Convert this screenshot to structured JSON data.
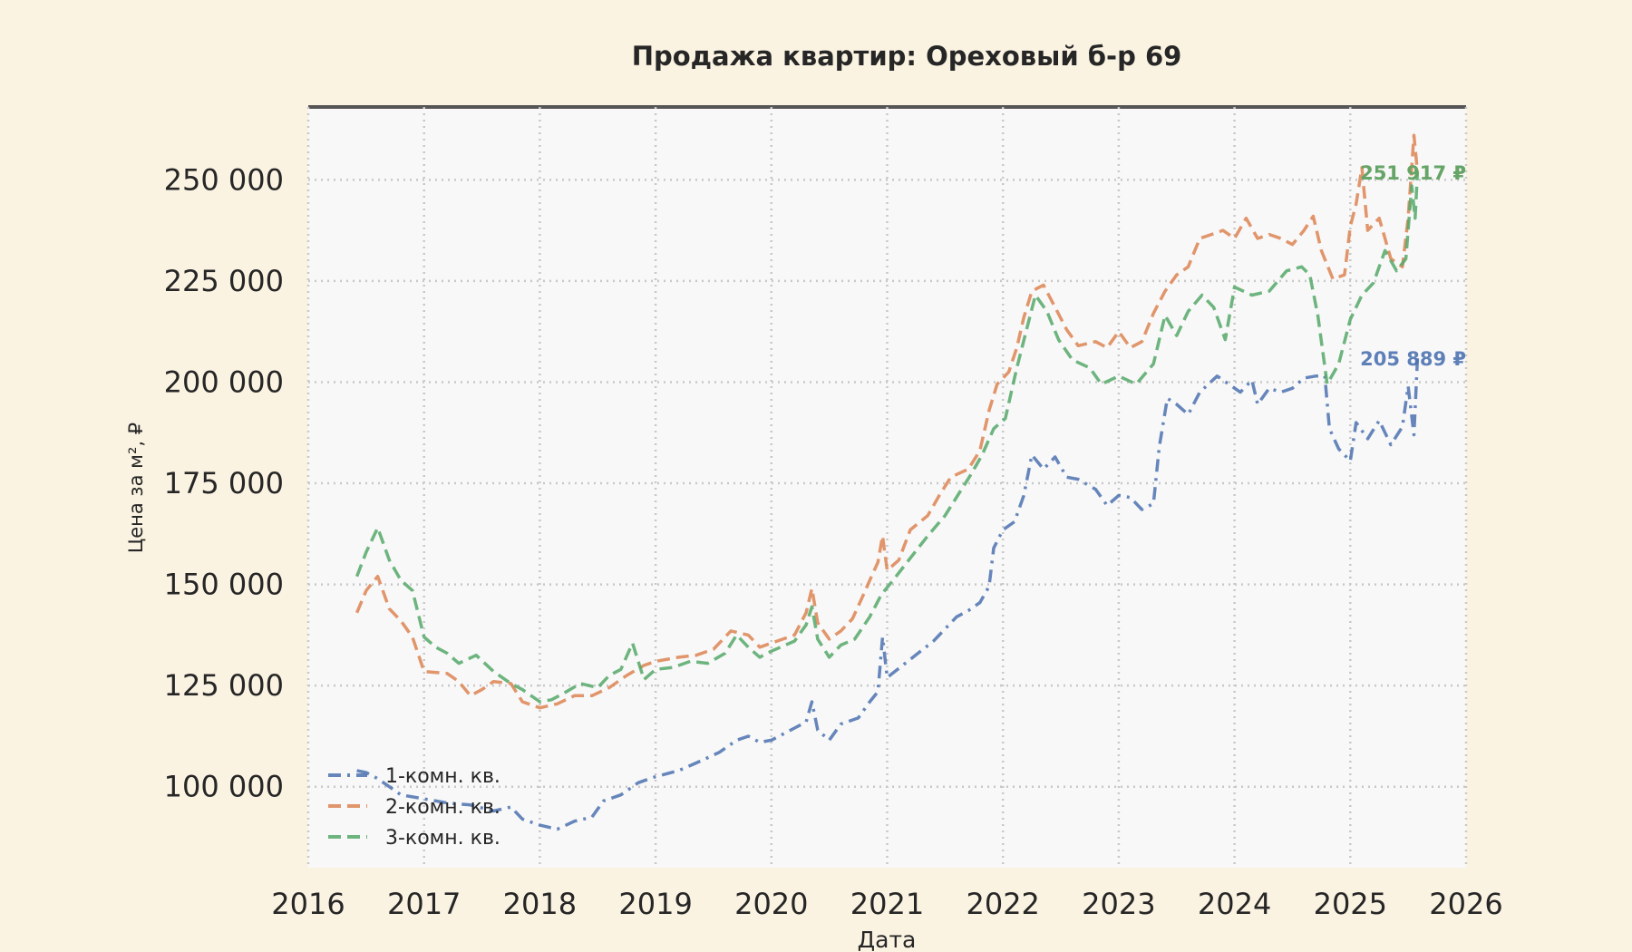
{
  "chart_data": {
    "type": "line",
    "title": "Продажа квартир: Ореховый б-р 69",
    "xlabel": "Дата",
    "ylabel": "Цена за м², ₽",
    "xlim": [
      2016,
      2026
    ],
    "ylim": [
      80000,
      268000
    ],
    "x_ticks": [
      "2016",
      "2017",
      "2018",
      "2019",
      "2020",
      "2021",
      "2022",
      "2023",
      "2024",
      "2025",
      "2026"
    ],
    "y_ticks": [
      "100 000",
      "125 000",
      "150 000",
      "175 000",
      "200 000",
      "225 000",
      "250 000"
    ],
    "y_tick_values": [
      100000,
      125000,
      150000,
      175000,
      200000,
      225000,
      250000
    ],
    "grid": true,
    "legend_position": "bottom-left",
    "series": [
      {
        "name": "1-комн. кв.",
        "color": "#4c72b0",
        "dash": "dashdot",
        "end_label": "205 889 ₽",
        "points": [
          [
            2016.42,
            104000
          ],
          [
            2016.5,
            103500
          ],
          [
            2016.6,
            102000
          ],
          [
            2016.7,
            100000
          ],
          [
            2016.8,
            98000
          ],
          [
            2016.9,
            97500
          ],
          [
            2017.0,
            97000
          ],
          [
            2017.2,
            96000
          ],
          [
            2017.4,
            95500
          ],
          [
            2017.6,
            94000
          ],
          [
            2017.75,
            95000
          ],
          [
            2017.85,
            92000
          ],
          [
            2018.0,
            90500
          ],
          [
            2018.15,
            89500
          ],
          [
            2018.3,
            91500
          ],
          [
            2018.45,
            92500
          ],
          [
            2018.55,
            96500
          ],
          [
            2018.7,
            98000
          ],
          [
            2018.85,
            101000
          ],
          [
            2019.0,
            102500
          ],
          [
            2019.2,
            104000
          ],
          [
            2019.4,
            106500
          ],
          [
            2019.55,
            108500
          ],
          [
            2019.7,
            111500
          ],
          [
            2019.8,
            112500
          ],
          [
            2019.9,
            111000
          ],
          [
            2020.0,
            111500
          ],
          [
            2020.2,
            114500
          ],
          [
            2020.3,
            116000
          ],
          [
            2020.35,
            121000
          ],
          [
            2020.4,
            114000
          ],
          [
            2020.5,
            111500
          ],
          [
            2020.6,
            115500
          ],
          [
            2020.75,
            117000
          ],
          [
            2020.85,
            121000
          ],
          [
            2020.92,
            123500
          ],
          [
            2020.96,
            137000
          ],
          [
            2021.0,
            127000
          ],
          [
            2021.2,
            131500
          ],
          [
            2021.4,
            136000
          ],
          [
            2021.6,
            142000
          ],
          [
            2021.7,
            143500
          ],
          [
            2021.8,
            145500
          ],
          [
            2021.88,
            149500
          ],
          [
            2021.92,
            159000
          ],
          [
            2022.0,
            163500
          ],
          [
            2022.1,
            165500
          ],
          [
            2022.18,
            172000
          ],
          [
            2022.25,
            182000
          ],
          [
            2022.35,
            178500
          ],
          [
            2022.45,
            181500
          ],
          [
            2022.55,
            176500
          ],
          [
            2022.65,
            176000
          ],
          [
            2022.8,
            173500
          ],
          [
            2022.9,
            169500
          ],
          [
            2023.0,
            172000
          ],
          [
            2023.1,
            171500
          ],
          [
            2023.2,
            168500
          ],
          [
            2023.3,
            170000
          ],
          [
            2023.35,
            184000
          ],
          [
            2023.42,
            196000
          ],
          [
            2023.5,
            194500
          ],
          [
            2023.6,
            192000
          ],
          [
            2023.7,
            197500
          ],
          [
            2023.85,
            201500
          ],
          [
            2023.95,
            199500
          ],
          [
            2024.05,
            197500
          ],
          [
            2024.15,
            200500
          ],
          [
            2024.2,
            194500
          ],
          [
            2024.3,
            198500
          ],
          [
            2024.4,
            197500
          ],
          [
            2024.5,
            198500
          ],
          [
            2024.6,
            201000
          ],
          [
            2024.7,
            201500
          ],
          [
            2024.78,
            201500
          ],
          [
            2024.82,
            188500
          ],
          [
            2024.9,
            183500
          ],
          [
            2025.0,
            180500
          ],
          [
            2025.05,
            190000
          ],
          [
            2025.15,
            186000
          ],
          [
            2025.25,
            190500
          ],
          [
            2025.35,
            184500
          ],
          [
            2025.45,
            189000
          ],
          [
            2025.5,
            199000
          ],
          [
            2025.55,
            187000
          ],
          [
            2025.58,
            205889
          ]
        ]
      },
      {
        "name": "2-комн. кв.",
        "color": "#dd8452",
        "dash": "dash",
        "end_label": "251 917 ₽",
        "points": [
          [
            2016.42,
            143000
          ],
          [
            2016.5,
            148500
          ],
          [
            2016.6,
            152000
          ],
          [
            2016.7,
            144000
          ],
          [
            2016.8,
            141000
          ],
          [
            2016.9,
            137000
          ],
          [
            2017.0,
            128500
          ],
          [
            2017.2,
            128000
          ],
          [
            2017.3,
            126000
          ],
          [
            2017.4,
            122500
          ],
          [
            2017.5,
            124000
          ],
          [
            2017.6,
            126000
          ],
          [
            2017.75,
            125500
          ],
          [
            2017.85,
            121000
          ],
          [
            2018.0,
            119500
          ],
          [
            2018.15,
            120500
          ],
          [
            2018.3,
            122500
          ],
          [
            2018.45,
            122500
          ],
          [
            2018.6,
            124500
          ],
          [
            2018.75,
            127500
          ],
          [
            2018.9,
            130000
          ],
          [
            2019.0,
            131000
          ],
          [
            2019.2,
            132000
          ],
          [
            2019.35,
            132500
          ],
          [
            2019.5,
            134000
          ],
          [
            2019.65,
            138500
          ],
          [
            2019.8,
            137500
          ],
          [
            2019.9,
            134500
          ],
          [
            2020.0,
            135500
          ],
          [
            2020.2,
            137500
          ],
          [
            2020.3,
            143000
          ],
          [
            2020.35,
            149000
          ],
          [
            2020.4,
            140500
          ],
          [
            2020.5,
            136500
          ],
          [
            2020.6,
            138500
          ],
          [
            2020.7,
            141500
          ],
          [
            2020.78,
            146500
          ],
          [
            2020.85,
            151000
          ],
          [
            2020.92,
            155500
          ],
          [
            2020.96,
            162000
          ],
          [
            2021.0,
            153500
          ],
          [
            2021.1,
            156000
          ],
          [
            2021.2,
            163500
          ],
          [
            2021.35,
            167000
          ],
          [
            2021.45,
            172000
          ],
          [
            2021.55,
            176500
          ],
          [
            2021.7,
            178500
          ],
          [
            2021.8,
            183000
          ],
          [
            2021.88,
            193000
          ],
          [
            2021.95,
            199500
          ],
          [
            2022.05,
            202500
          ],
          [
            2022.12,
            208500
          ],
          [
            2022.18,
            216000
          ],
          [
            2022.25,
            222500
          ],
          [
            2022.35,
            224000
          ],
          [
            2022.45,
            218500
          ],
          [
            2022.55,
            213000
          ],
          [
            2022.65,
            209000
          ],
          [
            2022.8,
            210000
          ],
          [
            2022.9,
            208500
          ],
          [
            2023.0,
            212500
          ],
          [
            2023.1,
            208500
          ],
          [
            2023.2,
            210000
          ],
          [
            2023.3,
            217000
          ],
          [
            2023.4,
            222500
          ],
          [
            2023.5,
            226500
          ],
          [
            2023.6,
            228500
          ],
          [
            2023.7,
            235500
          ],
          [
            2023.8,
            236500
          ],
          [
            2023.9,
            237500
          ],
          [
            2024.0,
            235500
          ],
          [
            2024.1,
            240500
          ],
          [
            2024.2,
            235500
          ],
          [
            2024.3,
            236500
          ],
          [
            2024.4,
            235500
          ],
          [
            2024.5,
            234000
          ],
          [
            2024.6,
            237500
          ],
          [
            2024.68,
            241000
          ],
          [
            2024.75,
            232500
          ],
          [
            2024.85,
            225500
          ],
          [
            2024.95,
            226500
          ],
          [
            2025.0,
            238500
          ],
          [
            2025.05,
            244000
          ],
          [
            2025.1,
            253000
          ],
          [
            2025.15,
            237500
          ],
          [
            2025.25,
            240500
          ],
          [
            2025.35,
            230500
          ],
          [
            2025.45,
            228500
          ],
          [
            2025.5,
            240500
          ],
          [
            2025.55,
            261000
          ],
          [
            2025.58,
            251917
          ]
        ]
      },
      {
        "name": "3-комн. кв.",
        "color": "#55a868",
        "dash": "dash",
        "end_label": "251 917 ₽",
        "points": [
          [
            2016.42,
            152000
          ],
          [
            2016.5,
            158000
          ],
          [
            2016.6,
            164000
          ],
          [
            2016.7,
            156000
          ],
          [
            2016.8,
            151000
          ],
          [
            2016.9,
            148500
          ],
          [
            2017.0,
            137000
          ],
          [
            2017.1,
            134500
          ],
          [
            2017.2,
            133000
          ],
          [
            2017.3,
            130500
          ],
          [
            2017.45,
            132500
          ],
          [
            2017.6,
            128500
          ],
          [
            2017.75,
            125500
          ],
          [
            2017.85,
            124000
          ],
          [
            2018.0,
            121000
          ],
          [
            2018.1,
            121500
          ],
          [
            2018.2,
            123000
          ],
          [
            2018.35,
            125500
          ],
          [
            2018.5,
            124500
          ],
          [
            2018.6,
            127500
          ],
          [
            2018.7,
            129000
          ],
          [
            2018.8,
            135500
          ],
          [
            2018.9,
            126500
          ],
          [
            2019.0,
            129000
          ],
          [
            2019.15,
            129500
          ],
          [
            2019.3,
            131000
          ],
          [
            2019.45,
            130500
          ],
          [
            2019.6,
            133000
          ],
          [
            2019.7,
            137500
          ],
          [
            2019.8,
            134500
          ],
          [
            2019.9,
            132000
          ],
          [
            2020.0,
            133500
          ],
          [
            2020.2,
            136000
          ],
          [
            2020.3,
            140000
          ],
          [
            2020.35,
            144500
          ],
          [
            2020.4,
            136500
          ],
          [
            2020.5,
            132000
          ],
          [
            2020.6,
            135000
          ],
          [
            2020.72,
            136500
          ],
          [
            2020.85,
            142000
          ],
          [
            2020.95,
            147500
          ],
          [
            2021.05,
            151000
          ],
          [
            2021.2,
            156500
          ],
          [
            2021.35,
            162000
          ],
          [
            2021.5,
            167000
          ],
          [
            2021.62,
            172500
          ],
          [
            2021.72,
            177000
          ],
          [
            2021.82,
            182000
          ],
          [
            2021.92,
            188500
          ],
          [
            2022.02,
            191000
          ],
          [
            2022.12,
            203500
          ],
          [
            2022.2,
            212500
          ],
          [
            2022.28,
            221500
          ],
          [
            2022.38,
            217500
          ],
          [
            2022.48,
            210500
          ],
          [
            2022.6,
            205500
          ],
          [
            2022.75,
            203500
          ],
          [
            2022.85,
            199500
          ],
          [
            2023.0,
            201500
          ],
          [
            2023.15,
            199500
          ],
          [
            2023.3,
            204500
          ],
          [
            2023.4,
            216500
          ],
          [
            2023.5,
            211500
          ],
          [
            2023.6,
            217500
          ],
          [
            2023.72,
            221500
          ],
          [
            2023.82,
            218500
          ],
          [
            2023.92,
            210500
          ],
          [
            2024.0,
            223500
          ],
          [
            2024.15,
            221500
          ],
          [
            2024.3,
            222500
          ],
          [
            2024.45,
            227500
          ],
          [
            2024.58,
            228500
          ],
          [
            2024.65,
            226500
          ],
          [
            2024.72,
            216500
          ],
          [
            2024.8,
            199500
          ],
          [
            2024.9,
            204500
          ],
          [
            2025.0,
            215500
          ],
          [
            2025.1,
            221500
          ],
          [
            2025.2,
            224500
          ],
          [
            2025.3,
            232500
          ],
          [
            2025.4,
            227500
          ],
          [
            2025.48,
            230500
          ],
          [
            2025.53,
            248500
          ],
          [
            2025.56,
            240500
          ],
          [
            2025.58,
            251917
          ]
        ]
      }
    ]
  }
}
